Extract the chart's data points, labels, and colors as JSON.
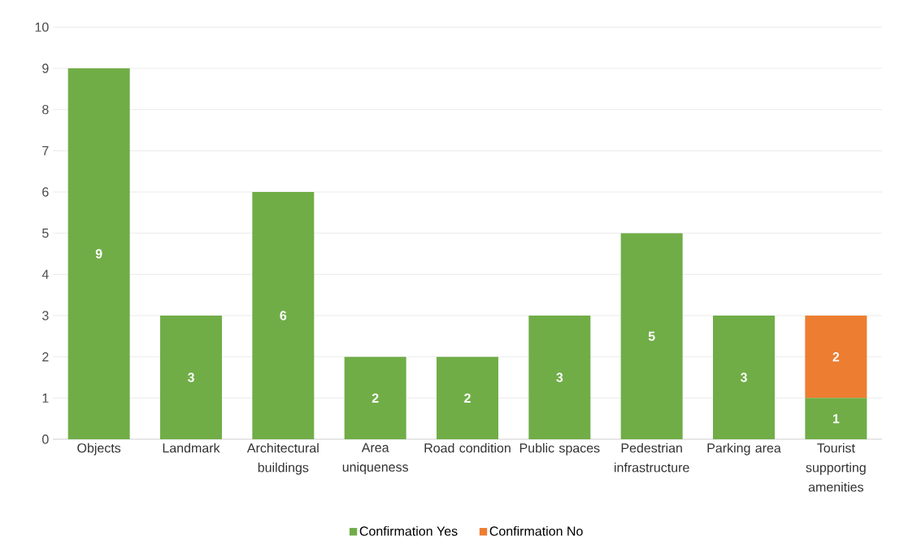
{
  "chart_data": {
    "type": "bar",
    "stacked": true,
    "categories": [
      "Objects",
      "Landmark",
      "Architectural buildings",
      "Area uniqueness",
      "Road condition",
      "Public spaces",
      "Pedestrian infrastructure",
      "Parking area",
      "Tourist supporting amenities"
    ],
    "series": [
      {
        "name": "Confirmation Yes",
        "color": "#70ad47",
        "values": [
          9,
          3,
          6,
          2,
          2,
          3,
          5,
          3,
          1
        ]
      },
      {
        "name": "Confirmation No",
        "color": "#ed7d31",
        "values": [
          null,
          null,
          null,
          null,
          null,
          null,
          null,
          null,
          2
        ]
      }
    ],
    "ylim": [
      0,
      10
    ],
    "yticks": [
      0,
      1,
      2,
      3,
      4,
      5,
      6,
      7,
      8,
      9,
      10
    ],
    "grid": "y",
    "legend": "bottom",
    "data_labels": true
  }
}
